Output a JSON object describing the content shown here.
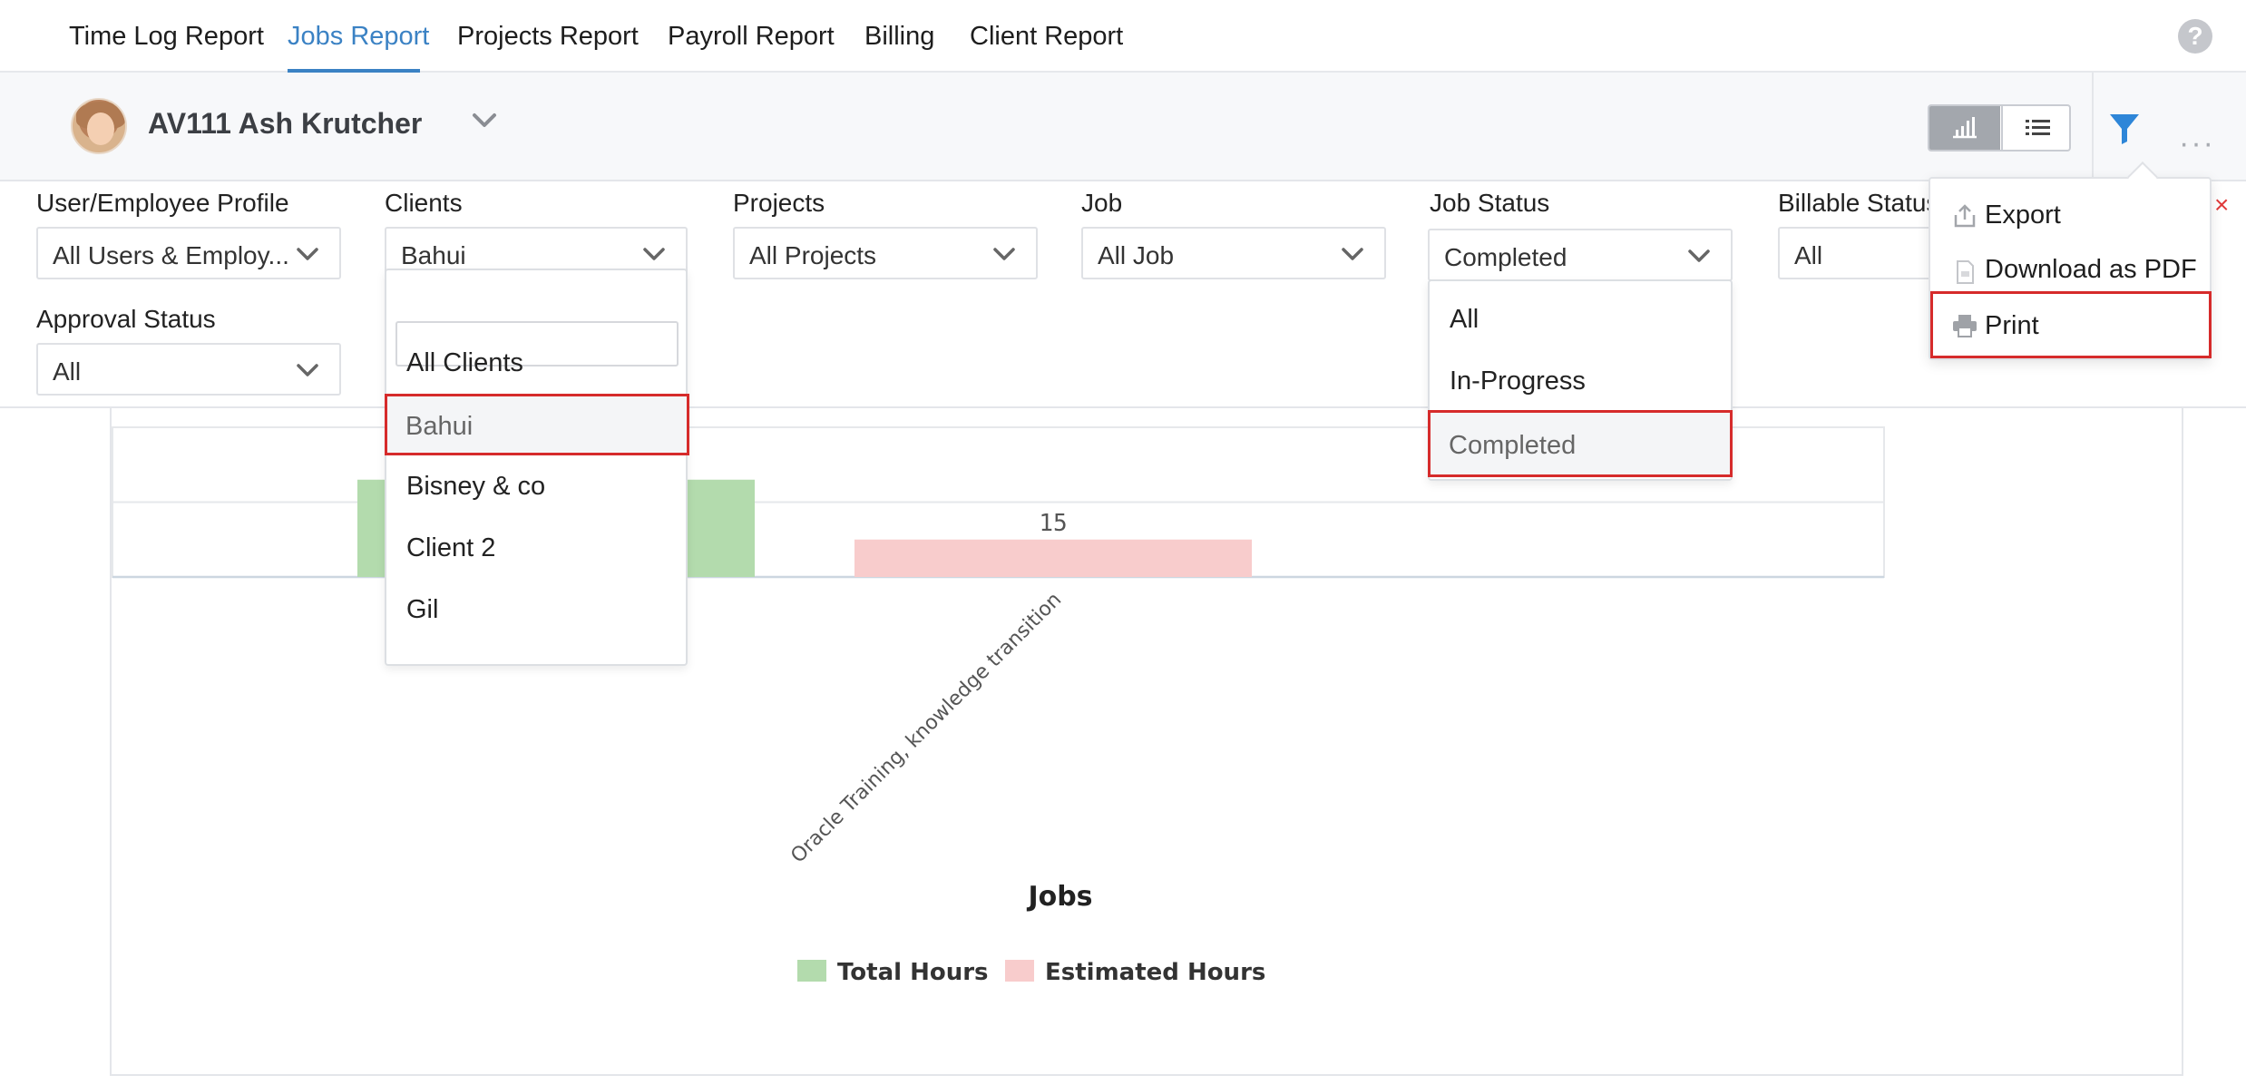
{
  "nav": {
    "tabs": [
      "Time Log Report",
      "Jobs Report",
      "Projects Report",
      "Payroll Report",
      "Billing",
      "Client Report"
    ],
    "active_tab": "Jobs Report",
    "help_label": "?"
  },
  "header": {
    "employee": "AV111 Ash Krutcher"
  },
  "filters": {
    "user_profile": {
      "label": "User/Employee Profile",
      "value": "All Users & Employ..."
    },
    "clients": {
      "label": "Clients",
      "value": "Bahui"
    },
    "projects": {
      "label": "Projects",
      "value": "All Projects"
    },
    "job": {
      "label": "Job",
      "value": "All Job"
    },
    "job_status": {
      "label": "Job Status",
      "value": "Completed"
    },
    "billable_status": {
      "label": "Billable Status",
      "value": "All"
    },
    "approval_status": {
      "label": "Approval Status",
      "value": "All"
    }
  },
  "clients_dropdown": {
    "search_placeholder": "",
    "options": [
      "All Clients",
      "Bahui",
      "Bisney & co",
      "Client 2",
      "Gil"
    ],
    "selected": "Bahui"
  },
  "job_status_dropdown": {
    "options": [
      "All",
      "In-Progress",
      "Completed"
    ],
    "selected": "Completed"
  },
  "more_menu": {
    "items": [
      "Export",
      "Download as PDF",
      "Print"
    ],
    "highlighted": "Print"
  },
  "close_label": "×",
  "colors": {
    "accent": "#3b82c4",
    "total_hours": "#b3dbad",
    "estimated_hours": "#f8cccc",
    "highlight": "#d62b2b"
  },
  "chart_data": {
    "type": "bar",
    "categories": [
      "Oracle Training,  knowledge transition"
    ],
    "series": [
      {
        "name": "Total Hours",
        "values": [
          39
        ]
      },
      {
        "name": "Estimated Hours",
        "values": [
          15
        ]
      }
    ],
    "xlabel": "Jobs",
    "ylabel": "",
    "ylim": [
      0,
      60
    ],
    "legend": "bottom-center",
    "grid": true
  }
}
